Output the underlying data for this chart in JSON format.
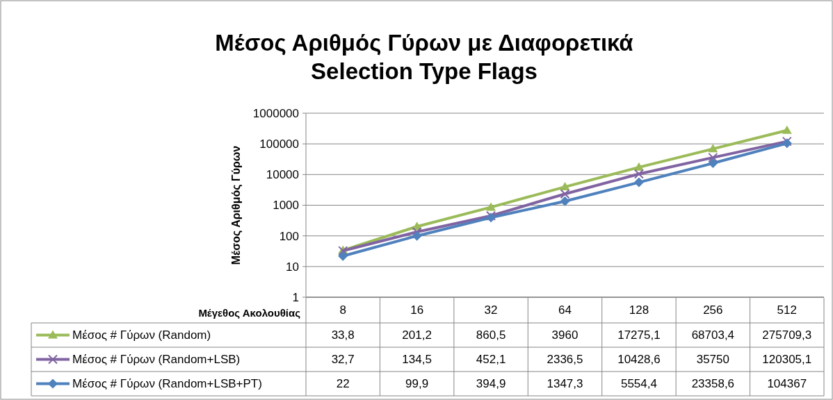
{
  "chart_data": {
    "type": "line",
    "title": "Μέσος Αριθμός Γύρων με Διαφορετικά\nSelection Type Flags",
    "xlabel": "Μέγεθος Ακολουθίας",
    "ylabel": "Μέσος Αριθμός Γύρων",
    "categories": [
      "8",
      "16",
      "32",
      "64",
      "128",
      "256",
      "512"
    ],
    "series": [
      {
        "name": "Μέσος # Γύρων (Random)",
        "color": "#9bbb59",
        "marker": "triangle",
        "values": [
          33.8,
          201.2,
          860.5,
          3960,
          17275.1,
          68703.4,
          275709.3
        ],
        "value_labels": [
          "33,8",
          "201,2",
          "860,5",
          "3960",
          "17275,1",
          "68703,4",
          "275709,3"
        ]
      },
      {
        "name": "Μέσος # Γύρων (Random+LSB)",
        "color": "#8064a2",
        "marker": "cross",
        "values": [
          32.7,
          134.5,
          452.1,
          2336.5,
          10428.6,
          35750,
          120305.1
        ],
        "value_labels": [
          "32,7",
          "134,5",
          "452,1",
          "2336,5",
          "10428,6",
          "35750",
          "120305,1"
        ]
      },
      {
        "name": "Μέσος # Γύρων (Random+LSB+PT)",
        "color": "#4f81bd",
        "marker": "diamond",
        "values": [
          22,
          99.9,
          394.9,
          1347.3,
          5554.4,
          23358.6,
          104367
        ],
        "value_labels": [
          "22",
          "99,9",
          "394,9",
          "1347,3",
          "5554,4",
          "23358,6",
          "104367"
        ]
      }
    ],
    "log": true,
    "ylim": [
      1,
      1000000
    ],
    "yticks": [
      1,
      10,
      100,
      1000,
      10000,
      100000,
      1000000
    ],
    "grid": "y",
    "legend": "bottom",
    "line_style": "solid"
  }
}
